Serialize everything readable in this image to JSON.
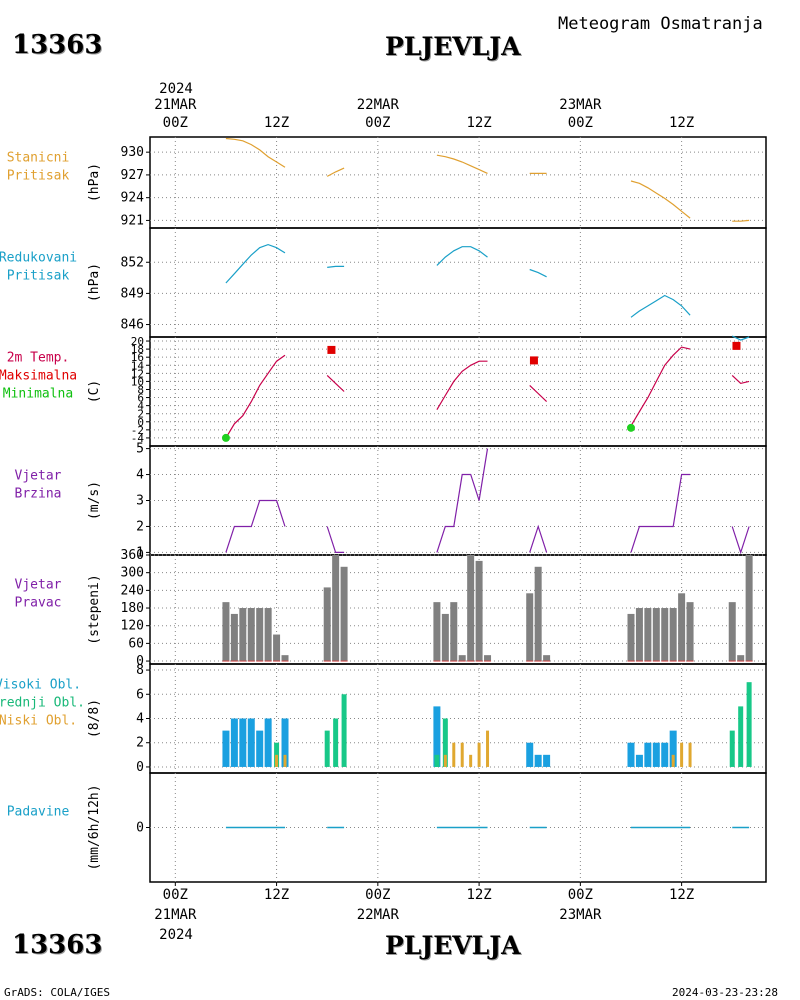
{
  "header": {
    "station_id": "13363",
    "station_name": "PLJEVLJA",
    "title": "Meteogram Osmatranja"
  },
  "footer": {
    "left": "GrADS: COLA/IGES",
    "right": "2024-03-23-23:28"
  },
  "time_axis": {
    "top_year": "2024",
    "bottom_year": "2024",
    "ticks": [
      {
        "h": 0,
        "label": "00Z",
        "date": "21MAR"
      },
      {
        "h": 12,
        "label": "12Z",
        "date": ""
      },
      {
        "h": 24,
        "label": "00Z",
        "date": "22MAR"
      },
      {
        "h": 36,
        "label": "12Z",
        "date": ""
      },
      {
        "h": 48,
        "label": "00Z",
        "date": "23MAR"
      },
      {
        "h": 60,
        "label": "12Z",
        "date": ""
      }
    ],
    "range_hours": [
      -3,
      70
    ]
  },
  "chart_data": [
    {
      "type": "line",
      "panel": "pressure_station",
      "title_lines": [
        "Stanicni",
        "Pritisak"
      ],
      "title_color": "#e0a030",
      "ylabel": "(hPa)",
      "ylim": [
        920,
        932
      ],
      "yticks": [
        930,
        927,
        924,
        921
      ],
      "color": "#e0a030",
      "x_unit": "hours from 21MAR 00Z",
      "segments": [
        [
          [
            6,
            931.8
          ],
          [
            7,
            931.7
          ],
          [
            8,
            931.5
          ],
          [
            9,
            931.0
          ],
          [
            10,
            930.3
          ],
          [
            11,
            929.4
          ],
          [
            12,
            928.7
          ],
          [
            13,
            928.0
          ]
        ],
        [
          [
            18,
            926.8
          ],
          [
            19,
            927.4
          ],
          [
            20,
            927.9
          ]
        ],
        [
          [
            31,
            929.6
          ],
          [
            32,
            929.4
          ],
          [
            33,
            929.1
          ],
          [
            34,
            928.7
          ],
          [
            35,
            928.2
          ],
          [
            36,
            927.7
          ],
          [
            37,
            927.2
          ]
        ],
        [
          [
            42,
            927.2
          ],
          [
            43,
            927.2
          ],
          [
            44,
            927.2
          ]
        ],
        [
          [
            54,
            926.2
          ],
          [
            55,
            925.9
          ],
          [
            56,
            925.3
          ],
          [
            57,
            924.6
          ],
          [
            58,
            923.9
          ],
          [
            59,
            923.1
          ],
          [
            60,
            922.2
          ],
          [
            61,
            921.3
          ]
        ],
        [
          [
            66,
            920.9
          ],
          [
            67,
            920.9
          ],
          [
            68,
            921.0
          ]
        ]
      ]
    },
    {
      "type": "line",
      "panel": "pressure_reduced",
      "title_lines": [
        "Redukovani",
        "Pritisak"
      ],
      "title_color": "#1aa0c8",
      "ylabel": "(hPa)",
      "ylim": [
        844.8,
        855.3
      ],
      "yticks": [
        852,
        849,
        846
      ],
      "color": "#1aa0c8",
      "x_unit": "hours from 21MAR 00Z",
      "segments": [
        [
          [
            6,
            850.0
          ],
          [
            7,
            850.9
          ],
          [
            8,
            851.8
          ],
          [
            9,
            852.7
          ],
          [
            10,
            853.4
          ],
          [
            11,
            853.7
          ],
          [
            12,
            853.4
          ],
          [
            13,
            852.9
          ]
        ],
        [
          [
            18,
            851.5
          ],
          [
            19,
            851.6
          ],
          [
            20,
            851.6
          ]
        ],
        [
          [
            31,
            851.7
          ],
          [
            32,
            852.5
          ],
          [
            33,
            853.1
          ],
          [
            34,
            853.5
          ],
          [
            35,
            853.5
          ],
          [
            36,
            853.1
          ],
          [
            37,
            852.5
          ]
        ],
        [
          [
            42,
            851.3
          ],
          [
            43,
            851.0
          ],
          [
            44,
            850.6
          ]
        ],
        [
          [
            54,
            846.7
          ],
          [
            55,
            847.3
          ],
          [
            56,
            847.8
          ],
          [
            57,
            848.3
          ],
          [
            58,
            848.8
          ],
          [
            59,
            848.4
          ],
          [
            60,
            847.8
          ],
          [
            61,
            846.9
          ]
        ],
        [
          [
            66,
            844.9
          ],
          [
            67,
            844.5
          ],
          [
            68,
            844.8
          ]
        ]
      ]
    },
    {
      "type": "line",
      "panel": "temperature",
      "title_lines": [
        "2m Temp.",
        "Maksimalna",
        "Minimalna"
      ],
      "title_colors": [
        "#c8004a",
        "#e00000",
        "#10c010"
      ],
      "ylabel": "(C)",
      "ylim": [
        -6,
        21
      ],
      "yticks": [
        20,
        18,
        16,
        14,
        12,
        10,
        8,
        6,
        4,
        2,
        0,
        -2,
        -4
      ],
      "color": "#c8004a",
      "x_unit": "hours from 21MAR 00Z",
      "segments": [
        [
          [
            6,
            -4.0
          ],
          [
            7,
            -0.5
          ],
          [
            8,
            1.5
          ],
          [
            9,
            5.0
          ],
          [
            10,
            9.0
          ],
          [
            11,
            12.0
          ],
          [
            12,
            15.0
          ],
          [
            13,
            16.5
          ]
        ],
        [
          [
            18,
            11.5
          ],
          [
            19,
            9.5
          ],
          [
            20,
            7.5
          ]
        ],
        [
          [
            31,
            3.0
          ],
          [
            32,
            6.5
          ],
          [
            33,
            10.0
          ],
          [
            34,
            12.5
          ],
          [
            35,
            14.0
          ],
          [
            36,
            15.0
          ],
          [
            37,
            15.0
          ]
        ],
        [
          [
            42,
            9.0
          ],
          [
            43,
            7.0
          ],
          [
            44,
            5.0
          ]
        ],
        [
          [
            54,
            -1.0
          ],
          [
            55,
            2.5
          ],
          [
            56,
            6.0
          ],
          [
            57,
            10.0
          ],
          [
            58,
            14.0
          ],
          [
            59,
            16.5
          ],
          [
            60,
            18.5
          ],
          [
            61,
            18.0
          ]
        ],
        [
          [
            66,
            11.5
          ],
          [
            67,
            9.5
          ],
          [
            68,
            10.0
          ]
        ]
      ],
      "markers_max": [
        [
          18.5,
          17.8
        ],
        [
          42.5,
          15.2
        ],
        [
          66.5,
          18.8
        ]
      ],
      "markers_min": [
        [
          6,
          -4.0
        ],
        [
          54,
          -1.5
        ]
      ]
    },
    {
      "type": "line",
      "panel": "wind_speed",
      "title_lines": [
        "Vjetar",
        "Brzina"
      ],
      "title_color": "#8020a8",
      "ylabel": "(m/s)",
      "ylim": [
        0.9,
        5.1
      ],
      "yticks": [
        5,
        4,
        3,
        2,
        1
      ],
      "color": "#8020a8",
      "x_unit": "hours from 21MAR 00Z",
      "segments": [
        [
          [
            6,
            1
          ],
          [
            7,
            2
          ],
          [
            8,
            2
          ],
          [
            9,
            2
          ],
          [
            10,
            3
          ],
          [
            11,
            3
          ],
          [
            12,
            3
          ],
          [
            13,
            2
          ]
        ],
        [
          [
            18,
            2
          ],
          [
            19,
            1
          ],
          [
            20,
            1
          ]
        ],
        [
          [
            31,
            1
          ],
          [
            32,
            2
          ],
          [
            33,
            2
          ],
          [
            34,
            4
          ],
          [
            35,
            4
          ],
          [
            36,
            3
          ],
          [
            37,
            5
          ]
        ],
        [
          [
            42,
            1
          ],
          [
            43,
            2
          ],
          [
            44,
            1
          ]
        ],
        [
          [
            54,
            1
          ],
          [
            55,
            2
          ],
          [
            56,
            2
          ],
          [
            57,
            2
          ],
          [
            58,
            2
          ],
          [
            59,
            2
          ],
          [
            60,
            4
          ],
          [
            61,
            4
          ]
        ],
        [
          [
            66,
            2
          ],
          [
            67,
            1
          ],
          [
            68,
            2
          ]
        ]
      ]
    },
    {
      "type": "bar",
      "panel": "wind_direction",
      "title_lines": [
        "Vjetar",
        "Pravac"
      ],
      "title_color": "#8020a8",
      "ylabel": "(stepeni)",
      "ylim": [
        -10,
        360
      ],
      "yticks": [
        360,
        300,
        240,
        180,
        120,
        60,
        0
      ],
      "color": "#808080",
      "x_unit": "hours from 21MAR 00Z",
      "bars": [
        [
          6,
          200
        ],
        [
          7,
          160
        ],
        [
          8,
          180
        ],
        [
          9,
          180
        ],
        [
          10,
          180
        ],
        [
          11,
          180
        ],
        [
          12,
          90
        ],
        [
          13,
          20
        ],
        [
          18,
          250
        ],
        [
          19,
          360
        ],
        [
          20,
          320
        ],
        [
          31,
          200
        ],
        [
          32,
          160
        ],
        [
          33,
          200
        ],
        [
          34,
          20
        ],
        [
          35,
          360
        ],
        [
          36,
          340
        ],
        [
          37,
          20
        ],
        [
          42,
          230
        ],
        [
          43,
          320
        ],
        [
          44,
          20
        ],
        [
          54,
          160
        ],
        [
          55,
          180
        ],
        [
          56,
          180
        ],
        [
          57,
          180
        ],
        [
          58,
          180
        ],
        [
          59,
          180
        ],
        [
          60,
          230
        ],
        [
          61,
          200
        ],
        [
          66,
          200
        ],
        [
          67,
          20
        ],
        [
          68,
          360
        ]
      ]
    },
    {
      "type": "bar",
      "panel": "clouds",
      "title_lines": [
        "Visoki Obl.",
        "Srednji Obl.",
        "Niski Obl."
      ],
      "title_colors": [
        "#1aa0c8",
        "#18b878",
        "#e0a030"
      ],
      "ylabel": "(8/8)",
      "ylim": [
        -0.5,
        8.5
      ],
      "yticks": [
        8,
        6,
        4,
        2,
        0
      ],
      "x_unit": "hours from 21MAR 00Z",
      "series": [
        {
          "color": "#1aa0e0",
          "values": [
            [
              6,
              3
            ],
            [
              7,
              4
            ],
            [
              8,
              4
            ],
            [
              9,
              4
            ],
            [
              10,
              3
            ],
            [
              11,
              4
            ],
            [
              13,
              4
            ],
            [
              31,
              5
            ],
            [
              42,
              2
            ],
            [
              43,
              1
            ],
            [
              44,
              1
            ],
            [
              54,
              2
            ],
            [
              55,
              1
            ],
            [
              56,
              2
            ],
            [
              57,
              2
            ],
            [
              58,
              2
            ],
            [
              59,
              3
            ]
          ]
        },
        {
          "color": "#18c888",
          "values": [
            [
              12,
              2
            ],
            [
              18,
              3
            ],
            [
              19,
              4
            ],
            [
              20,
              6
            ],
            [
              31,
              1
            ],
            [
              32,
              4
            ],
            [
              66,
              3
            ],
            [
              67,
              5
            ],
            [
              68,
              7
            ]
          ]
        },
        {
          "color": "#e0a830",
          "values": [
            [
              12,
              1
            ],
            [
              13,
              1
            ],
            [
              32,
              1
            ],
            [
              33,
              2
            ],
            [
              34,
              2
            ],
            [
              35,
              1
            ],
            [
              36,
              2
            ],
            [
              37,
              3
            ],
            [
              59,
              1
            ],
            [
              60,
              2
            ],
            [
              61,
              2
            ]
          ]
        }
      ]
    },
    {
      "type": "bar",
      "panel": "precipitation",
      "title_lines": [
        "Padavine"
      ],
      "title_color": "#1aa0c8",
      "ylabel": "(mm/6h/12h)",
      "ylim": [
        -5,
        5
      ],
      "yticks": [
        0
      ],
      "color": "#1aa0c8",
      "x_unit": "hours from 21MAR 00Z",
      "segments": [
        [
          6,
          13
        ],
        [
          18,
          20
        ],
        [
          31,
          37
        ],
        [
          42,
          44
        ],
        [
          54,
          61
        ],
        [
          66,
          68
        ]
      ]
    }
  ]
}
